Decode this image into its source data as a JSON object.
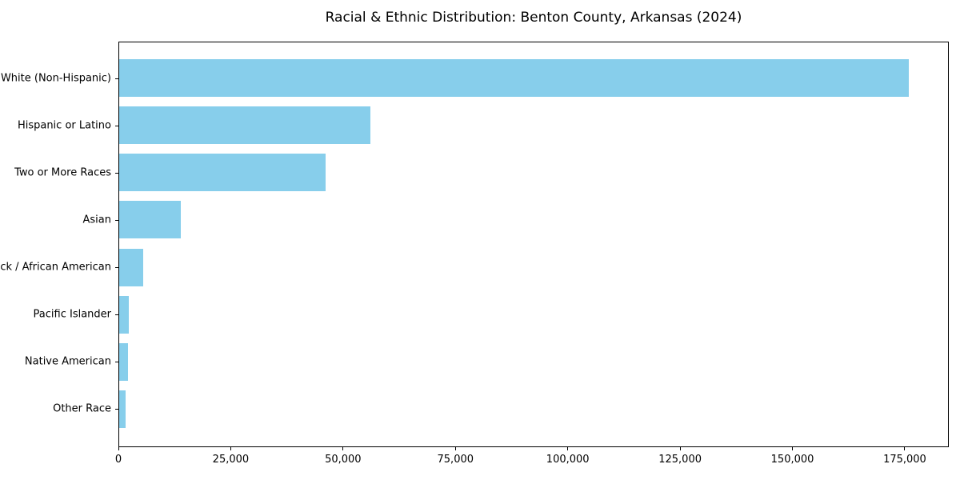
{
  "chart_data": {
    "type": "bar",
    "orientation": "horizontal",
    "title": "Racial & Ethnic Distribution: Benton County, Arkansas (2024)",
    "categories": [
      "White (Non-Hispanic)",
      "Hispanic or Latino",
      "Two or More Races",
      "Asian",
      "Black / African American",
      "Pacific Islander",
      "Native American",
      "Other Race"
    ],
    "values": [
      176000,
      56000,
      46000,
      13800,
      5400,
      2200,
      2000,
      1400
    ],
    "xlabel": "",
    "ylabel": "",
    "xlim": [
      0,
      184800
    ],
    "x_ticks": [
      0,
      25000,
      50000,
      75000,
      100000,
      125000,
      150000,
      175000
    ],
    "x_tick_labels": [
      "0",
      "25,000",
      "50,000",
      "75,000",
      "100,000",
      "125,000",
      "150,000",
      "175,000"
    ],
    "bar_color": "#87CEEB",
    "axis_color": "#000000",
    "background_color": "#ffffff",
    "grid": false,
    "legend": false
  }
}
